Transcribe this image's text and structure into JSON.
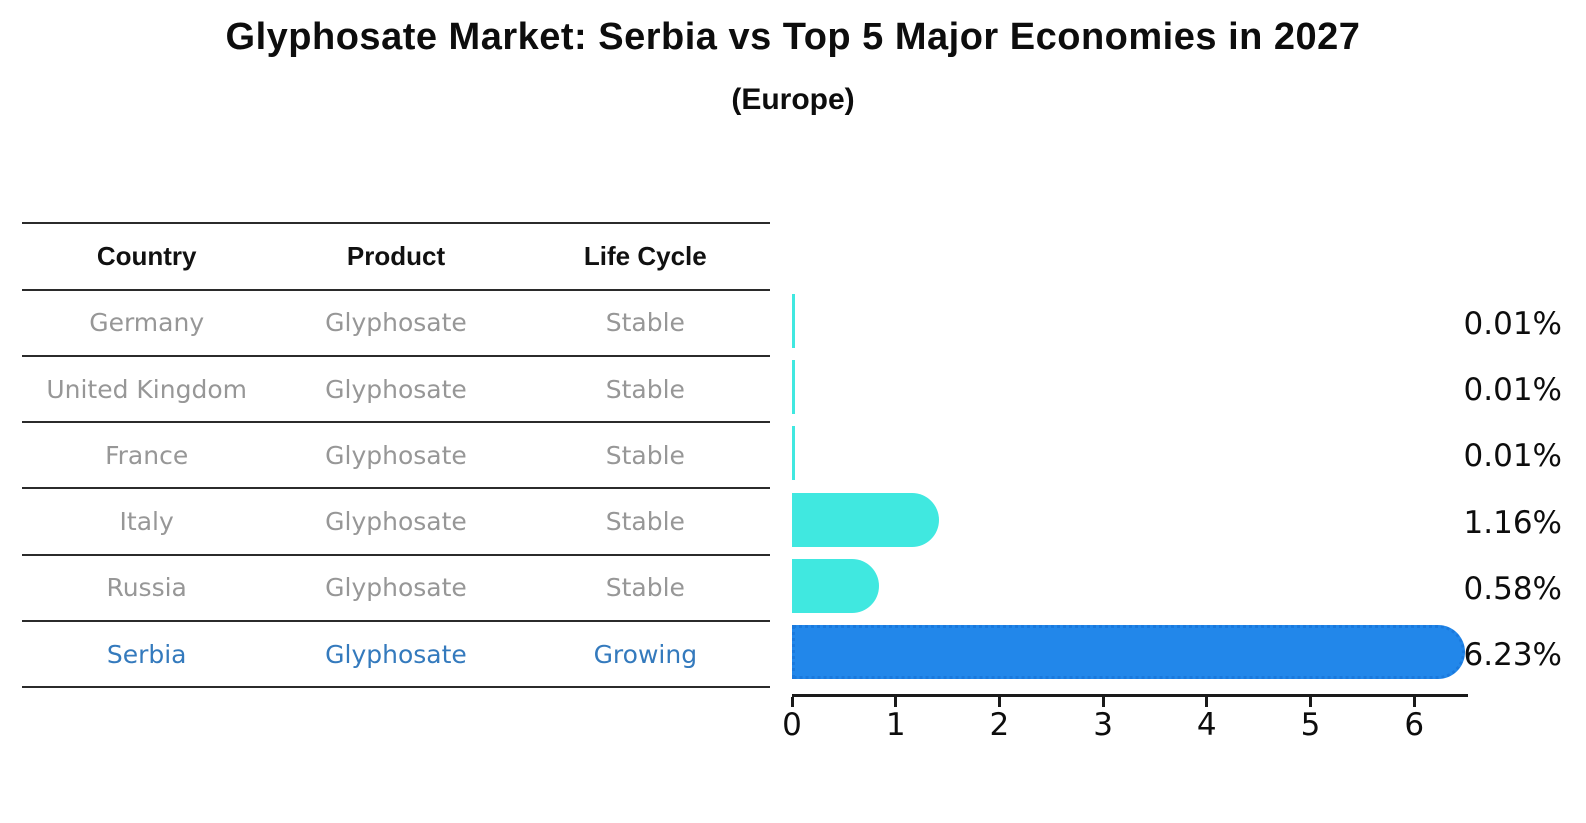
{
  "title": "Glyphosate Market: Serbia vs Top 5 Major Economies in 2027",
  "subtitle": "(Europe)",
  "table": {
    "headers": [
      "Country",
      "Product",
      "Life Cycle"
    ],
    "rows": [
      {
        "country": "Germany",
        "product": "Glyphosate",
        "life_cycle": "Stable",
        "highlight": false
      },
      {
        "country": "United Kingdom",
        "product": "Glyphosate",
        "life_cycle": "Stable",
        "highlight": false
      },
      {
        "country": "France",
        "product": "Glyphosate",
        "life_cycle": "Stable",
        "highlight": false
      },
      {
        "country": "Italy",
        "product": "Glyphosate",
        "life_cycle": "Stable",
        "highlight": false
      },
      {
        "country": "Russia",
        "product": "Glyphosate",
        "life_cycle": "Stable",
        "highlight": false
      },
      {
        "country": "Serbia",
        "product": "Glyphosate",
        "life_cycle": "Growing",
        "highlight": true
      }
    ]
  },
  "chart_data": {
    "type": "bar",
    "orientation": "horizontal",
    "title": "Glyphosate Market: Serbia vs Top 5 Major Economies in 2027",
    "subtitle": "(Europe)",
    "categories": [
      "Germany",
      "United Kingdom",
      "France",
      "Italy",
      "Russia",
      "Serbia"
    ],
    "values": [
      0.01,
      0.01,
      0.01,
      1.16,
      0.58,
      6.23
    ],
    "value_labels": [
      "0.01%",
      "0.01%",
      "0.01%",
      "1.16%",
      "0.58%",
      "6.23%"
    ],
    "xlabel": "",
    "ylabel": "",
    "x_ticks": [
      "0",
      "1",
      "2",
      "3",
      "4",
      "5",
      "6"
    ],
    "xlim": [
      0,
      6.52
    ],
    "grid": false,
    "legend": false,
    "highlight_index": 5,
    "highlight_border_style": "dotted",
    "colors": {
      "bar_default": "#40e8e0",
      "bar_highlight": "#2287ea",
      "bar_highlight_border": "#1a79dd",
      "highlight_text": "#347abd",
      "muted_text": "#979797",
      "axis": "#1a1a1a",
      "heading_text": "#0d0d0d"
    }
  }
}
